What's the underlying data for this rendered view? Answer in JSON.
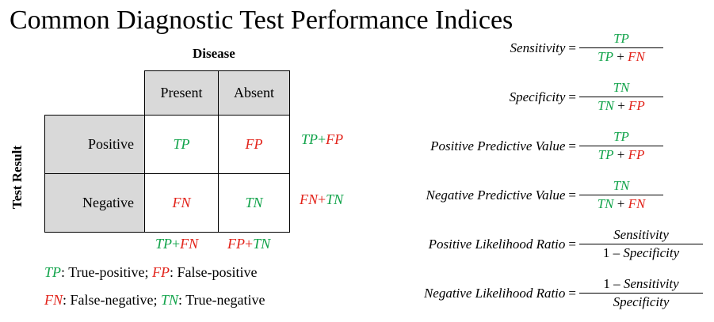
{
  "title": "Common Diagnostic Test Performance Indices",
  "table": {
    "column_header": "Disease",
    "row_header": "Test Result",
    "columns": [
      "Present",
      "Absent"
    ],
    "rows": [
      "Positive",
      "Negative"
    ],
    "cells": {
      "tp": "TP",
      "fp": "FP",
      "fn": "FN",
      "tn": "TN"
    },
    "plus": "+",
    "row_totals": [
      {
        "left": "TP",
        "right": "FP"
      },
      {
        "left": "FN",
        "right": "TN"
      }
    ],
    "col_totals": [
      {
        "left": "TP",
        "right": "FN"
      },
      {
        "left": "FP",
        "right": "TN"
      }
    ]
  },
  "legend": {
    "line1": [
      {
        "abbr": "TP",
        "text": ": True-positive; "
      },
      {
        "abbr": "FP",
        "text": ": False-positive"
      }
    ],
    "line2": [
      {
        "abbr": "FN",
        "text": ": False-negative; "
      },
      {
        "abbr": "TN",
        "text": ": True-negative"
      }
    ]
  },
  "formulas": {
    "sensitivity": {
      "lhs": "Sensitivity",
      "eq": "=",
      "num": "TP",
      "den_a": "TP",
      "den_b": "FN"
    },
    "specificity": {
      "lhs": "Specificity",
      "eq": "=",
      "num": "TN",
      "den_a": "TN",
      "den_b": "FP"
    },
    "ppv": {
      "lhs": "Positive Predictive Value",
      "eq": "=",
      "num": "TP",
      "den_a": "TP",
      "den_b": "FP"
    },
    "npv": {
      "lhs": "Negative Predictive Value",
      "eq": "=",
      "num": "TN",
      "den_a": "TN",
      "den_b": "FN"
    },
    "plr": {
      "lhs": "Positive Likelihood Ratio",
      "eq": "=",
      "num": "Sensitivity",
      "den_pre": "1 – ",
      "den": "Specificity"
    },
    "nlr": {
      "lhs": "Negative Likelihood Ratio",
      "eq": "=",
      "num_pre": "1 – ",
      "num": "Sensitivity",
      "den": "Specificity"
    },
    "plus": " + "
  },
  "colors": {
    "positive_green": "#11a34a",
    "negative_red": "#e2231a",
    "header_gray": "#d9d9d9"
  }
}
